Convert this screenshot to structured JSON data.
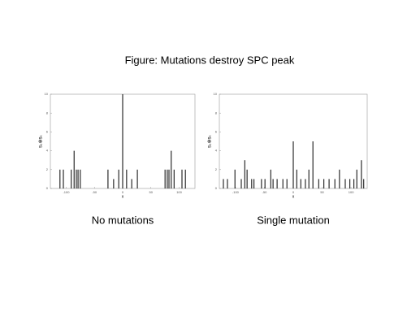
{
  "title": "Figure: Mutations destroy SPC peak",
  "chart_data": [
    {
      "type": "stem",
      "caption": "No mutations",
      "x_label": "x",
      "y_label": "s₀⊗sₖ",
      "color": "#000000",
      "x": [
        -111,
        -105,
        -91,
        -86,
        -82,
        -79,
        -75,
        -26,
        -16,
        -7,
        0,
        7,
        16,
        26,
        75,
        79,
        82,
        86,
        91,
        105,
        111
      ],
      "values": [
        2,
        2,
        2,
        4,
        2,
        2,
        2,
        2,
        1,
        2,
        10,
        2,
        1,
        2,
        2,
        2,
        2,
        4,
        2,
        2,
        2
      ],
      "xlim": [
        -128,
        128
      ],
      "ylim": [
        0,
        10
      ],
      "xticks": [
        -100,
        -50,
        0,
        50,
        100
      ],
      "yticks": [
        0,
        2,
        4,
        6,
        8,
        10
      ]
    },
    {
      "type": "stem",
      "caption": "Single mutation",
      "x_label": "x",
      "y_label": "s₀⊗sₖ",
      "color": "#000000",
      "x": [
        -121,
        -114,
        -101,
        -90,
        -84,
        -80,
        -72,
        -68,
        -55,
        -49,
        -39,
        -35,
        -28,
        -18,
        -11,
        0,
        6,
        13,
        21,
        27,
        34,
        44,
        53,
        62,
        72,
        80,
        90,
        98,
        105,
        110,
        118,
        122
      ],
      "values": [
        1,
        1,
        2,
        1,
        3,
        2,
        1,
        1,
        1,
        1,
        2,
        1,
        1,
        1,
        1,
        5,
        2,
        1,
        1,
        2,
        5,
        1,
        1,
        1,
        1,
        2,
        1,
        1,
        1,
        2,
        3,
        1
      ],
      "xlim": [
        -128,
        128
      ],
      "ylim": [
        0,
        10
      ],
      "xticks": [
        -100,
        -50,
        0,
        50,
        100
      ],
      "yticks": [
        0,
        2,
        4,
        6,
        8,
        10
      ]
    }
  ]
}
